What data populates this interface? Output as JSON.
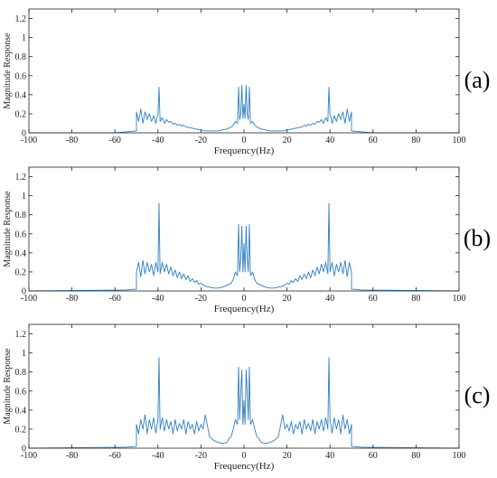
{
  "figure": {
    "panel_labels": [
      "(a)",
      "(b)",
      "(c)"
    ]
  },
  "style": {
    "series_color": "#2f7fc1",
    "axis_color": "#222222",
    "background": "#ffffff"
  },
  "chart_data": [
    {
      "type": "line",
      "panel_label": "(a)",
      "xlabel": "Frequency(Hz)",
      "ylabel": "Magnitude Response",
      "xlim": [
        -100,
        100
      ],
      "ylim": [
        0,
        1.3
      ],
      "xticks": [
        -100,
        -80,
        -60,
        -40,
        -20,
        0,
        20,
        40,
        60,
        80,
        100
      ],
      "yticks": [
        0,
        0.2,
        0.4,
        0.6,
        0.8,
        1,
        1.2
      ],
      "grid": false,
      "series": [
        {
          "x": [
            -100,
            -60,
            -55,
            -50,
            -50,
            -49,
            -48,
            -47,
            -46,
            -45,
            -44,
            -43,
            -42,
            -41,
            -40,
            -39.5,
            -39,
            -38,
            -37,
            -36,
            -35,
            -34,
            -33,
            -32,
            -31,
            -30,
            -29,
            -28,
            -27,
            -26,
            -25,
            -24,
            -23,
            -22,
            -21,
            -20,
            -18,
            -16,
            -14,
            -12,
            -10,
            -8,
            -6,
            -5,
            -4,
            -3,
            -2.5,
            -2,
            -1.5,
            -1,
            -0.5,
            0,
            0.5,
            1,
            1.5,
            2,
            2.5,
            3,
            4,
            5,
            6,
            8,
            10,
            12,
            14,
            16,
            18,
            20,
            21,
            22,
            23,
            24,
            25,
            26,
            27,
            28,
            29,
            30,
            31,
            32,
            33,
            34,
            35,
            36,
            37,
            38,
            39,
            39.5,
            40,
            41,
            42,
            43,
            44,
            45,
            46,
            47,
            48,
            49,
            50,
            50,
            55,
            60,
            100
          ],
          "y": [
            0,
            0,
            0.01,
            0.02,
            0.22,
            0.12,
            0.25,
            0.1,
            0.22,
            0.14,
            0.2,
            0.12,
            0.18,
            0.1,
            0.2,
            0.48,
            0.12,
            0.16,
            0.1,
            0.14,
            0.11,
            0.12,
            0.09,
            0.1,
            0.08,
            0.09,
            0.07,
            0.08,
            0.06,
            0.06,
            0.05,
            0.05,
            0.04,
            0.04,
            0.03,
            0.03,
            0.02,
            0.02,
            0.02,
            0.02,
            0.03,
            0.04,
            0.06,
            0.08,
            0.12,
            0.1,
            0.48,
            0.14,
            0.2,
            0.5,
            0.15,
            0.3,
            0.15,
            0.5,
            0.2,
            0.14,
            0.48,
            0.1,
            0.12,
            0.08,
            0.06,
            0.04,
            0.03,
            0.02,
            0.02,
            0.02,
            0.02,
            0.03,
            0.03,
            0.04,
            0.04,
            0.05,
            0.05,
            0.06,
            0.06,
            0.08,
            0.07,
            0.09,
            0.08,
            0.1,
            0.09,
            0.12,
            0.11,
            0.14,
            0.1,
            0.16,
            0.12,
            0.48,
            0.2,
            0.1,
            0.18,
            0.12,
            0.2,
            0.14,
            0.22,
            0.1,
            0.25,
            0.12,
            0.22,
            0.02,
            0.01,
            0,
            0
          ]
        }
      ]
    },
    {
      "type": "line",
      "panel_label": "(b)",
      "xlabel": "Frequency(Hz)",
      "ylabel": "Magnitude Response",
      "xlim": [
        -100,
        100
      ],
      "ylim": [
        0,
        1.3
      ],
      "xticks": [
        -100,
        -80,
        -60,
        -40,
        -20,
        0,
        20,
        40,
        60,
        80,
        100
      ],
      "yticks": [
        0,
        0.2,
        0.4,
        0.6,
        0.8,
        1,
        1.2
      ],
      "grid": false,
      "series": [
        {
          "x": [
            -100,
            -55,
            -50,
            -50,
            -49,
            -48,
            -47,
            -46,
            -45,
            -44,
            -43,
            -42,
            -41,
            -40,
            -39.5,
            -39,
            -38,
            -37,
            -36,
            -35,
            -34,
            -33,
            -32,
            -31,
            -30,
            -29,
            -28,
            -27,
            -26,
            -25,
            -24,
            -23,
            -22,
            -21,
            -20,
            -18,
            -16,
            -14,
            -12,
            -10,
            -8,
            -6,
            -5,
            -4,
            -3,
            -2.5,
            -2,
            -1.5,
            -1,
            -0.5,
            0,
            0.5,
            1,
            1.5,
            2,
            2.5,
            3,
            4,
            5,
            6,
            8,
            10,
            12,
            14,
            16,
            18,
            20,
            21,
            22,
            23,
            24,
            25,
            26,
            27,
            28,
            29,
            30,
            31,
            32,
            33,
            34,
            35,
            36,
            37,
            38,
            39,
            39.5,
            40,
            41,
            42,
            43,
            44,
            45,
            46,
            47,
            48,
            49,
            50,
            50,
            55,
            100
          ],
          "y": [
            0,
            0.01,
            0.02,
            0.2,
            0.3,
            0.15,
            0.32,
            0.18,
            0.3,
            0.2,
            0.28,
            0.16,
            0.3,
            0.2,
            0.92,
            0.18,
            0.3,
            0.2,
            0.28,
            0.18,
            0.25,
            0.16,
            0.22,
            0.14,
            0.2,
            0.13,
            0.18,
            0.12,
            0.16,
            0.1,
            0.13,
            0.09,
            0.11,
            0.07,
            0.08,
            0.05,
            0.04,
            0.03,
            0.03,
            0.04,
            0.06,
            0.08,
            0.12,
            0.2,
            0.16,
            0.7,
            0.2,
            0.35,
            0.68,
            0.2,
            0.5,
            0.2,
            0.68,
            0.35,
            0.2,
            0.7,
            0.16,
            0.2,
            0.12,
            0.08,
            0.06,
            0.04,
            0.03,
            0.03,
            0.04,
            0.05,
            0.08,
            0.07,
            0.11,
            0.09,
            0.13,
            0.1,
            0.16,
            0.12,
            0.18,
            0.13,
            0.2,
            0.14,
            0.22,
            0.16,
            0.25,
            0.18,
            0.28,
            0.2,
            0.3,
            0.18,
            0.92,
            0.2,
            0.3,
            0.16,
            0.28,
            0.2,
            0.3,
            0.18,
            0.32,
            0.15,
            0.3,
            0.2,
            0.02,
            0.01,
            0
          ]
        }
      ]
    },
    {
      "type": "line",
      "panel_label": "(c)",
      "xlabel": "Frequency(Hz)",
      "ylabel": "Magnitude Response",
      "xlim": [
        -100,
        100
      ],
      "ylim": [
        0,
        1.3
      ],
      "xticks": [
        -100,
        -80,
        -60,
        -40,
        -20,
        0,
        20,
        40,
        60,
        80,
        100
      ],
      "yticks": [
        0,
        0.2,
        0.4,
        0.6,
        0.8,
        1,
        1.2
      ],
      "grid": false,
      "series": [
        {
          "x": [
            -100,
            -55,
            -50,
            -50,
            -49,
            -48,
            -47,
            -46,
            -45,
            -44,
            -43,
            -42,
            -41,
            -40,
            -39.5,
            -39,
            -38,
            -37,
            -36,
            -35,
            -34,
            -33,
            -32,
            -31,
            -30,
            -29,
            -28,
            -27,
            -26,
            -25,
            -24,
            -23,
            -22,
            -21,
            -20,
            -19,
            -18,
            -16,
            -14,
            -12,
            -10,
            -8,
            -7,
            -6,
            -5,
            -4,
            -3,
            -2.5,
            -2,
            -1.5,
            -1,
            -0.5,
            0,
            0.5,
            1,
            1.5,
            2,
            2.5,
            3,
            4,
            5,
            6,
            7,
            8,
            10,
            12,
            14,
            16,
            18,
            19,
            20,
            21,
            22,
            23,
            24,
            25,
            26,
            27,
            28,
            29,
            30,
            31,
            32,
            33,
            34,
            35,
            36,
            37,
            38,
            39,
            39.5,
            40,
            41,
            42,
            43,
            44,
            45,
            46,
            47,
            48,
            49,
            50,
            50,
            55,
            100
          ],
          "y": [
            0,
            0.01,
            0.02,
            0.25,
            0.15,
            0.3,
            0.2,
            0.35,
            0.15,
            0.3,
            0.2,
            0.32,
            0.16,
            0.3,
            0.95,
            0.2,
            0.32,
            0.18,
            0.3,
            0.2,
            0.28,
            0.15,
            0.3,
            0.18,
            0.26,
            0.2,
            0.3,
            0.15,
            0.28,
            0.2,
            0.25,
            0.15,
            0.28,
            0.18,
            0.25,
            0.2,
            0.35,
            0.12,
            0.08,
            0.06,
            0.05,
            0.06,
            0.1,
            0.12,
            0.2,
            0.3,
            0.25,
            0.85,
            0.3,
            0.6,
            0.82,
            0.25,
            0.5,
            0.25,
            0.82,
            0.6,
            0.3,
            0.85,
            0.25,
            0.3,
            0.2,
            0.12,
            0.1,
            0.06,
            0.05,
            0.06,
            0.08,
            0.12,
            0.35,
            0.2,
            0.25,
            0.18,
            0.28,
            0.15,
            0.25,
            0.2,
            0.28,
            0.15,
            0.3,
            0.2,
            0.26,
            0.18,
            0.3,
            0.15,
            0.28,
            0.2,
            0.3,
            0.18,
            0.32,
            0.2,
            0.95,
            0.3,
            0.16,
            0.32,
            0.2,
            0.3,
            0.15,
            0.35,
            0.2,
            0.3,
            0.15,
            0.25,
            0.02,
            0.01,
            0
          ]
        }
      ]
    }
  ]
}
